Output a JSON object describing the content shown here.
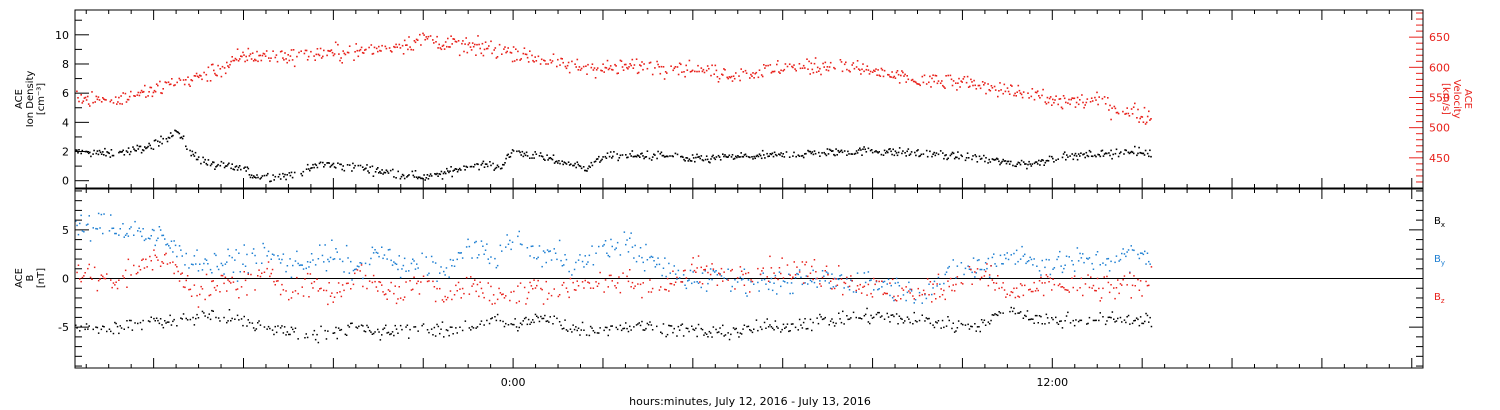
{
  "colors": {
    "black": "#000000",
    "red": "#e8211b",
    "blue": "#1e7fd2",
    "frame": "#000000"
  },
  "xaxis": {
    "label": "hours:minutes, July 12, 2016 - July 13, 2016",
    "unit": "hours relative to 2016-07-13 00:00",
    "range": [
      -9.75,
      20.25
    ],
    "major_ticks": [
      -8,
      -6,
      -4,
      -2,
      0,
      2,
      4,
      6,
      8,
      10,
      12,
      14,
      16,
      18,
      20
    ],
    "tick_labels": [
      {
        "x": 0,
        "text": "0:00"
      },
      {
        "x": 12,
        "text": "12:00"
      }
    ]
  },
  "chart_data": [
    {
      "panel": "plasma",
      "type": "scatter",
      "ylabel_left": [
        "ACE",
        "Ion Density",
        "[cm⁻³]"
      ],
      "ylabel_right": [
        "ACE",
        "Velocity",
        "[km/s]"
      ],
      "left_axis": {
        "range": [
          -0.5,
          11.7
        ],
        "ticks": [
          0,
          2,
          4,
          6,
          8,
          10
        ],
        "tick_labels": [
          "0",
          "2",
          "4",
          "6",
          "8",
          "10"
        ]
      },
      "right_axis": {
        "range": [
          400,
          695
        ],
        "ticks": [
          450,
          500,
          550,
          600,
          650
        ],
        "tick_labels": [
          "450",
          "500",
          "550",
          "600",
          "650"
        ]
      },
      "series": [
        {
          "name": "",
          "quantity": "ion density",
          "color": "#000000",
          "axis": "left",
          "anchors": [
            [
              -9.75,
              2.0
            ],
            [
              -9.0,
              1.9
            ],
            [
              -8.5,
              2.1
            ],
            [
              -8.0,
              2.5
            ],
            [
              -7.5,
              3.5
            ],
            [
              -7.2,
              2.0
            ],
            [
              -6.8,
              1.2
            ],
            [
              -6.4,
              1.0
            ],
            [
              -6.0,
              0.9
            ],
            [
              -5.8,
              0.4
            ],
            [
              -5.3,
              0.3
            ],
            [
              -4.8,
              0.5
            ],
            [
              -4.3,
              1.2
            ],
            [
              -3.8,
              1.0
            ],
            [
              -3.3,
              0.9
            ],
            [
              -2.8,
              0.6
            ],
            [
              -2.3,
              0.4
            ],
            [
              -1.8,
              0.3
            ],
            [
              -1.3,
              0.8
            ],
            [
              -0.8,
              1.2
            ],
            [
              -0.3,
              1.0
            ],
            [
              0.0,
              2.1
            ],
            [
              0.5,
              1.7
            ],
            [
              1.0,
              1.4
            ],
            [
              1.6,
              0.9
            ],
            [
              2.0,
              1.7
            ],
            [
              3.0,
              1.8
            ],
            [
              3.5,
              1.7
            ],
            [
              4.0,
              1.5
            ],
            [
              5.0,
              1.7
            ],
            [
              6.0,
              1.8
            ],
            [
              7.0,
              2.0
            ],
            [
              8.0,
              2.1
            ],
            [
              9.0,
              1.9
            ],
            [
              10.0,
              1.7
            ],
            [
              11.0,
              1.3
            ],
            [
              11.5,
              1.2
            ],
            [
              12.0,
              1.6
            ],
            [
              13.0,
              1.9
            ],
            [
              14.0,
              2.0
            ],
            [
              14.2,
              1.9
            ]
          ],
          "jitter": 0.28
        },
        {
          "name": "",
          "quantity": "velocity",
          "color": "#e8211b",
          "axis": "right",
          "anchors": [
            [
              -9.75,
              555
            ],
            [
              -9.0,
              545
            ],
            [
              -8.5,
              555
            ],
            [
              -8.0,
              563
            ],
            [
              -7.5,
              575
            ],
            [
              -7.0,
              585
            ],
            [
              -6.5,
              600
            ],
            [
              -6.0,
              620
            ],
            [
              -5.0,
              620
            ],
            [
              -4.0,
              625
            ],
            [
              -3.0,
              630
            ],
            [
              -2.0,
              648
            ],
            [
              -1.0,
              635
            ],
            [
              0.0,
              628
            ],
            [
              0.5,
              617
            ],
            [
              1.0,
              605
            ],
            [
              2.0,
              600
            ],
            [
              3.0,
              605
            ],
            [
              4.0,
              598
            ],
            [
              5.0,
              588
            ],
            [
              6.0,
              600
            ],
            [
              7.0,
              605
            ],
            [
              8.0,
              595
            ],
            [
              9.0,
              578
            ],
            [
              10.0,
              575
            ],
            [
              11.0,
              565
            ],
            [
              12.0,
              545
            ],
            [
              13.0,
              545
            ],
            [
              13.5,
              530
            ],
            [
              14.2,
              520
            ]
          ],
          "jitter": 13
        }
      ]
    },
    {
      "panel": "magnetic field",
      "type": "scatter",
      "ylabel_left": [
        "ACE",
        "B",
        "[nT]"
      ],
      "left_axis": {
        "range": [
          -9.2,
          9.2
        ],
        "ticks": [
          -5,
          0,
          5
        ],
        "tick_labels": [
          "-5",
          "0",
          "5"
        ],
        "zero_line": true
      },
      "legend": {
        "placement": "right"
      },
      "series": [
        {
          "name": "Bx",
          "label": "B",
          "subscript": "x",
          "color": "#000000",
          "anchors": [
            [
              -9.75,
              -5.0
            ],
            [
              -9.0,
              -5.0
            ],
            [
              -8.5,
              -4.8
            ],
            [
              -8.0,
              -4.2
            ],
            [
              -7.5,
              -4.5
            ],
            [
              -7.0,
              -3.8
            ],
            [
              -6.5,
              -4.0
            ],
            [
              -6.0,
              -4.5
            ],
            [
              -5.5,
              -5.0
            ],
            [
              -5.0,
              -5.3
            ],
            [
              -4.5,
              -6.0
            ],
            [
              -4.0,
              -5.2
            ],
            [
              -3.5,
              -5.0
            ],
            [
              -3.0,
              -5.5
            ],
            [
              -2.5,
              -5.2
            ],
            [
              -2.0,
              -5.0
            ],
            [
              -1.5,
              -5.5
            ],
            [
              -1.0,
              -4.8
            ],
            [
              -0.5,
              -4.2
            ],
            [
              0.0,
              -4.8
            ],
            [
              0.5,
              -4.0
            ],
            [
              1.0,
              -4.5
            ],
            [
              1.5,
              -5.2
            ],
            [
              2.0,
              -5.0
            ],
            [
              3.0,
              -4.8
            ],
            [
              4.0,
              -5.3
            ],
            [
              4.5,
              -5.5
            ],
            [
              5.0,
              -5.3
            ],
            [
              6.0,
              -4.8
            ],
            [
              7.0,
              -4.2
            ],
            [
              8.0,
              -3.8
            ],
            [
              9.0,
              -4.2
            ],
            [
              10.0,
              -4.8
            ],
            [
              10.5,
              -4.5
            ],
            [
              11.0,
              -3.0
            ],
            [
              11.5,
              -3.8
            ],
            [
              12.0,
              -4.3
            ],
            [
              13.0,
              -4.2
            ],
            [
              14.2,
              -4.0
            ]
          ],
          "jitter": 0.7
        },
        {
          "name": "By",
          "label": "B",
          "subscript": "y",
          "color": "#1e7fd2",
          "anchors": [
            [
              -9.75,
              5.2
            ],
            [
              -9.0,
              5.5
            ],
            [
              -8.5,
              5.0
            ],
            [
              -8.0,
              4.5
            ],
            [
              -7.5,
              3.0
            ],
            [
              -7.0,
              2.0
            ],
            [
              -6.5,
              1.5
            ],
            [
              -6.0,
              2.0
            ],
            [
              -5.5,
              2.5
            ],
            [
              -5.0,
              1.5
            ],
            [
              -4.5,
              2.0
            ],
            [
              -4.0,
              2.5
            ],
            [
              -3.5,
              1.0
            ],
            [
              -3.0,
              3.0
            ],
            [
              -2.5,
              1.0
            ],
            [
              -2.0,
              2.0
            ],
            [
              -1.5,
              0.5
            ],
            [
              -1.0,
              3.5
            ],
            [
              -0.5,
              2.0
            ],
            [
              0.0,
              4.0
            ],
            [
              0.5,
              2.5
            ],
            [
              1.0,
              2.5
            ],
            [
              1.5,
              1.5
            ],
            [
              2.0,
              3.0
            ],
            [
              2.5,
              4.0
            ],
            [
              3.0,
              2.0
            ],
            [
              3.5,
              0.5
            ],
            [
              4.0,
              0.0
            ],
            [
              4.5,
              0.5
            ],
            [
              5.0,
              0.0
            ],
            [
              5.5,
              -0.3
            ],
            [
              6.0,
              -0.5
            ],
            [
              7.0,
              0.0
            ],
            [
              8.0,
              -0.3
            ],
            [
              9.0,
              -1.5
            ],
            [
              10.0,
              1.0
            ],
            [
              10.5,
              1.5
            ],
            [
              11.0,
              2.5
            ],
            [
              12.0,
              1.5
            ],
            [
              13.0,
              2.0
            ],
            [
              14.2,
              2.5
            ]
          ],
          "jitter": 1.3
        },
        {
          "name": "Bz",
          "label": "B",
          "subscript": "z",
          "color": "#e8211b",
          "anchors": [
            [
              -9.75,
              0.5
            ],
            [
              -9.0,
              0.0
            ],
            [
              -8.5,
              0.5
            ],
            [
              -8.0,
              2.5
            ],
            [
              -7.5,
              1.0
            ],
            [
              -7.0,
              -1.5
            ],
            [
              -6.5,
              -0.5
            ],
            [
              -6.0,
              -0.5
            ],
            [
              -5.5,
              0.5
            ],
            [
              -5.0,
              -1.0
            ],
            [
              -4.5,
              -0.5
            ],
            [
              -4.0,
              -1.5
            ],
            [
              -3.5,
              0.5
            ],
            [
              -3.0,
              -0.5
            ],
            [
              -2.5,
              -1.5
            ],
            [
              -2.0,
              0.5
            ],
            [
              -1.5,
              -2.0
            ],
            [
              -1.0,
              -0.5
            ],
            [
              -0.5,
              -1.5
            ],
            [
              0.0,
              -2.0
            ],
            [
              0.5,
              -0.5
            ],
            [
              1.0,
              -1.5
            ],
            [
              1.5,
              0.0
            ],
            [
              2.0,
              -1.0
            ],
            [
              2.5,
              0.0
            ],
            [
              3.0,
              -1.0
            ],
            [
              3.5,
              -0.5
            ],
            [
              4.0,
              1.0
            ],
            [
              4.5,
              0.5
            ],
            [
              5.0,
              0.5
            ],
            [
              5.5,
              1.0
            ],
            [
              6.0,
              1.0
            ],
            [
              7.0,
              0.5
            ],
            [
              8.0,
              -1.0
            ],
            [
              9.0,
              -1.5
            ],
            [
              10.0,
              0.0
            ],
            [
              10.5,
              0.5
            ],
            [
              11.0,
              -1.5
            ],
            [
              12.0,
              -0.5
            ],
            [
              13.0,
              -1.0
            ],
            [
              14.2,
              -0.5
            ]
          ],
          "jitter": 1.3
        }
      ]
    }
  ]
}
